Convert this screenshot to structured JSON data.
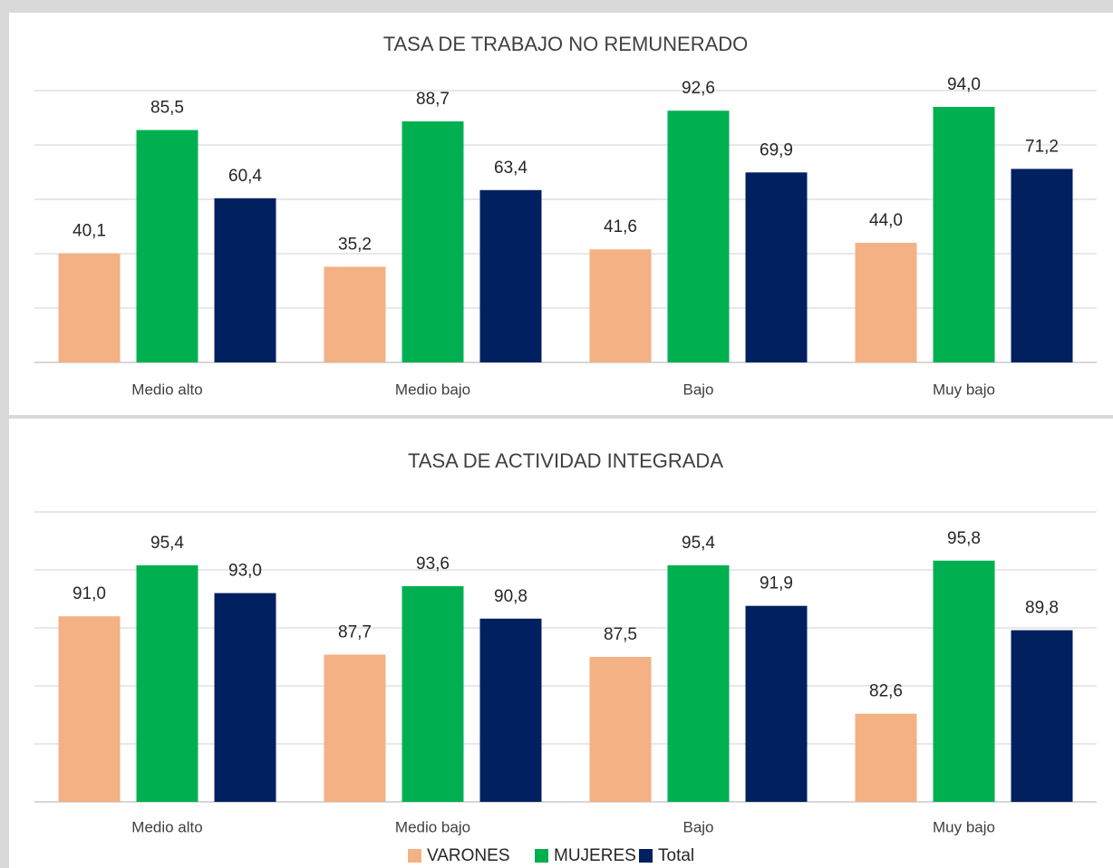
{
  "chart_data": [
    {
      "type": "bar",
      "title": "TASA DE TRABAJO NO REMUNERADO",
      "categories": [
        "Medio alto",
        "Medio bajo",
        "Bajo",
        "Muy bajo"
      ],
      "series": [
        {
          "name": "VARONES",
          "color": "#f4b183",
          "values": [
            40.1,
            35.2,
            41.6,
            44.0
          ],
          "value_labels": [
            "40,1",
            "35,2",
            "41,6",
            "44,0"
          ]
        },
        {
          "name": "MUJERES",
          "color": "#00b050",
          "values": [
            85.5,
            88.7,
            92.6,
            94.0
          ],
          "value_labels": [
            "85,5",
            "88,7",
            "92,6",
            "94,0"
          ]
        },
        {
          "name": "Total",
          "color": "#002060",
          "values": [
            60.4,
            63.4,
            69.9,
            71.2
          ],
          "value_labels": [
            "60,4",
            "63,4",
            "69,9",
            "71,2"
          ]
        }
      ],
      "ylim": [
        0,
        100
      ],
      "yticks": [
        0,
        20,
        40,
        60,
        80,
        100
      ],
      "grid": true
    },
    {
      "type": "bar",
      "title": "TASA DE ACTIVIDAD INTEGRADA",
      "categories": [
        "Medio alto",
        "Medio bajo",
        "Bajo",
        "Muy bajo"
      ],
      "series": [
        {
          "name": "VARONES",
          "color": "#f4b183",
          "values": [
            91.0,
            87.7,
            87.5,
            82.6
          ],
          "value_labels": [
            "91,0",
            "87,7",
            "87,5",
            "82,6"
          ]
        },
        {
          "name": "MUJERES",
          "color": "#00b050",
          "values": [
            95.4,
            93.6,
            95.4,
            95.8
          ],
          "value_labels": [
            "95,4",
            "93,6",
            "95,4",
            "95,8"
          ]
        },
        {
          "name": "Total",
          "color": "#002060",
          "values": [
            93.0,
            90.8,
            91.9,
            89.8
          ],
          "value_labels": [
            "93,0",
            "90,8",
            "91,9",
            "89,8"
          ]
        }
      ],
      "ylim": [
        75,
        100
      ],
      "yticks": [
        75,
        80,
        85,
        90,
        95,
        100
      ],
      "grid": true,
      "legend": "bottom"
    }
  ]
}
